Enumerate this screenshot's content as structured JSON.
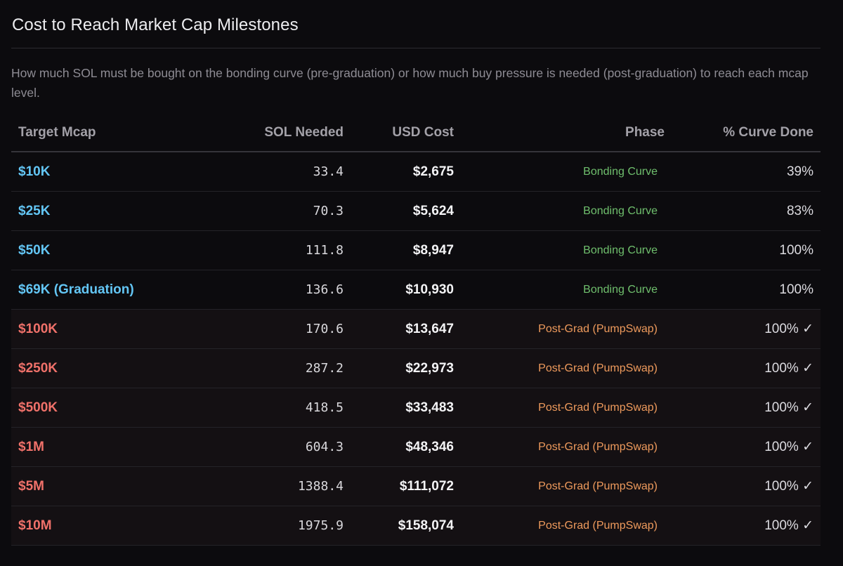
{
  "title": "Cost to Reach Market Cap Milestones",
  "subtitle": "How much SOL must be bought on the bonding curve (pre-graduation) or how much buy pressure is needed (post-graduation) to reach each mcap level.",
  "colors": {
    "pre_mcap": "#63c6f5",
    "post_mcap": "#f0716a",
    "bonding_phase": "#6fbf6d",
    "post_phase": "#ee9a5c",
    "background": "#0c0b0e"
  },
  "columns": {
    "target": "Target Mcap",
    "sol": "SOL Needed",
    "usd": "USD Cost",
    "phase": "Phase",
    "pct": "% Curve Done"
  },
  "rows": [
    {
      "target": "$10K",
      "sol": "33.4",
      "usd": "$2,675",
      "phase": "Bonding Curve",
      "pct": "39%"
    },
    {
      "target": "$25K",
      "sol": "70.3",
      "usd": "$5,624",
      "phase": "Bonding Curve",
      "pct": "83%"
    },
    {
      "target": "$50K",
      "sol": "111.8",
      "usd": "$8,947",
      "phase": "Bonding Curve",
      "pct": "100%"
    },
    {
      "target": "$69K (Graduation)",
      "sol": "136.6",
      "usd": "$10,930",
      "phase": "Bonding Curve",
      "pct": "100%"
    },
    {
      "target": "$100K",
      "sol": "170.6",
      "usd": "$13,647",
      "phase": "Post-Grad (PumpSwap)",
      "pct": "100% ✓"
    },
    {
      "target": "$250K",
      "sol": "287.2",
      "usd": "$22,973",
      "phase": "Post-Grad (PumpSwap)",
      "pct": "100% ✓"
    },
    {
      "target": "$500K",
      "sol": "418.5",
      "usd": "$33,483",
      "phase": "Post-Grad (PumpSwap)",
      "pct": "100% ✓"
    },
    {
      "target": "$1M",
      "sol": "604.3",
      "usd": "$48,346",
      "phase": "Post-Grad (PumpSwap)",
      "pct": "100% ✓"
    },
    {
      "target": "$5M",
      "sol": "1388.4",
      "usd": "$111,072",
      "phase": "Post-Grad (PumpSwap)",
      "pct": "100% ✓"
    },
    {
      "target": "$10M",
      "sol": "1975.9",
      "usd": "$158,074",
      "phase": "Post-Grad (PumpSwap)",
      "pct": "100% ✓"
    }
  ]
}
